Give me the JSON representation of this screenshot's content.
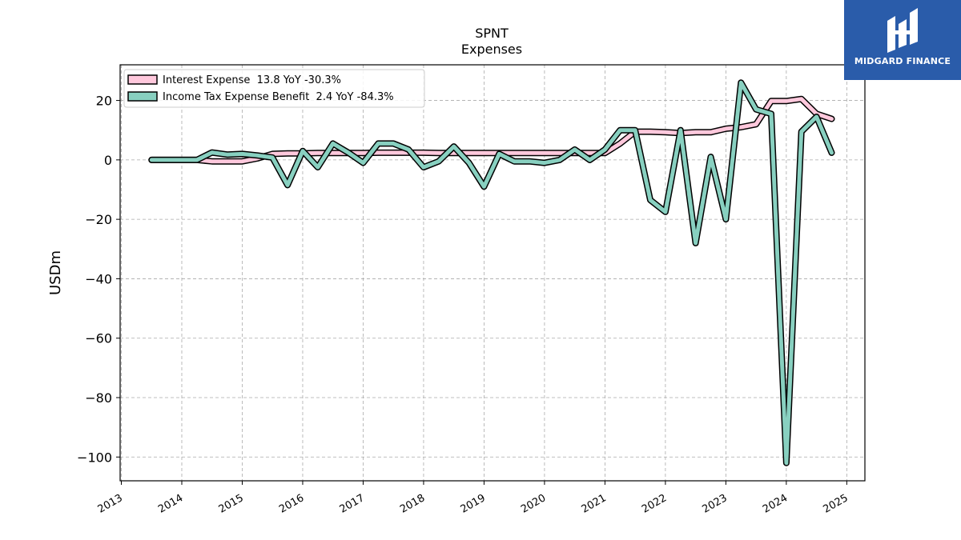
{
  "brand": {
    "name": "MIDGARD FINANCE",
    "color": "#2a5caa"
  },
  "chart_data": {
    "type": "line",
    "title": "SPNT",
    "subtitle": "Expenses",
    "ylabel": "USDm",
    "xlabel": "",
    "xlim": [
      2012.98,
      2025.3
    ],
    "ylim": [
      -108,
      32
    ],
    "yticks": [
      20,
      0,
      -20,
      -40,
      -60,
      -80,
      -100
    ],
    "xticks": [
      "2013",
      "2014",
      "2015",
      "2016",
      "2017",
      "2018",
      "2019",
      "2020",
      "2021",
      "2022",
      "2023",
      "2024",
      "2025"
    ],
    "grid": true,
    "legend_position": "top-left",
    "series": [
      {
        "name": "Interest Expense  13.8 YoY -30.3%",
        "color": "#ffc8dc",
        "x": [
          2013.5,
          2013.75,
          2014.0,
          2014.25,
          2014.5,
          2014.75,
          2015.0,
          2015.25,
          2015.5,
          2015.75,
          2016.0,
          2016.25,
          2016.5,
          2016.75,
          2017.0,
          2017.25,
          2017.5,
          2017.75,
          2018.0,
          2018.25,
          2018.5,
          2018.75,
          2019.0,
          2019.25,
          2019.5,
          2019.75,
          2020.0,
          2020.25,
          2020.5,
          2020.75,
          2021.0,
          2021.25,
          2021.5,
          2021.75,
          2022.0,
          2022.25,
          2022.5,
          2022.75,
          2023.0,
          2023.25,
          2023.5,
          2023.75,
          2024.0,
          2024.25,
          2024.5,
          2024.75
        ],
        "y": [
          0,
          0,
          0,
          0,
          -0.5,
          -0.5,
          -0.5,
          0.5,
          2.0,
          2.2,
          2.2,
          2.3,
          2.3,
          2.3,
          2.3,
          2.4,
          2.4,
          2.4,
          2.4,
          2.3,
          2.3,
          2.3,
          2.3,
          2.3,
          2.3,
          2.3,
          2.3,
          2.3,
          2.3,
          2.3,
          2.3,
          5.5,
          9.5,
          9.5,
          9.3,
          9.0,
          9.3,
          9.3,
          10.5,
          11.0,
          12.0,
          19.8,
          19.8,
          20.5,
          15.5,
          13.8
        ]
      },
      {
        "name": "Income Tax Expense Benefit  2.4 YoY -84.3%",
        "color": "#88d0c0",
        "x": [
          2013.5,
          2013.75,
          2014.0,
          2014.25,
          2014.5,
          2014.75,
          2015.0,
          2015.25,
          2015.5,
          2015.75,
          2016.0,
          2016.25,
          2016.5,
          2016.75,
          2017.0,
          2017.25,
          2017.5,
          2017.75,
          2018.0,
          2018.25,
          2018.5,
          2018.75,
          2019.0,
          2019.25,
          2019.5,
          2019.75,
          2020.0,
          2020.25,
          2020.5,
          2020.75,
          2021.0,
          2021.25,
          2021.5,
          2021.75,
          2022.0,
          2022.25,
          2022.5,
          2022.75,
          2023.0,
          2023.25,
          2023.5,
          2023.75,
          2024.0,
          2024.25,
          2024.5,
          2024.75
        ],
        "y": [
          0,
          0,
          0,
          0,
          2.5,
          1.8,
          2.0,
          1.5,
          0.8,
          -8.5,
          3.0,
          -2.5,
          5.5,
          2.5,
          -1.0,
          5.5,
          5.5,
          3.5,
          -2.5,
          -0.5,
          4.5,
          -1.0,
          -9.0,
          2.0,
          -0.5,
          -0.5,
          -1.0,
          0.0,
          3.5,
          0.0,
          3.5,
          10.0,
          10.0,
          -13.5,
          -17.5,
          10.0,
          -28.0,
          1.0,
          -20.0,
          26.0,
          17.0,
          15.5,
          -102.0,
          9.5,
          14.5,
          2.4
        ]
      }
    ]
  }
}
